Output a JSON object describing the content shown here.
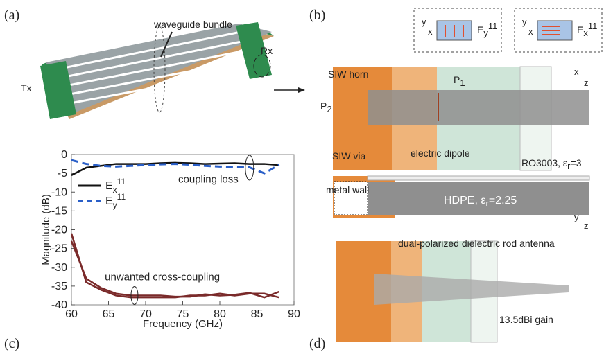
{
  "panels": {
    "a": {
      "label": "(a)",
      "bundle": "waveguide bundle",
      "rx": "Rx",
      "tx": "Tx"
    },
    "b": {
      "label": "(b)",
      "ey": [
        "E",
        "y",
        "11"
      ],
      "ex": [
        "E",
        "x",
        "11"
      ],
      "siw_horn": "SIW horn",
      "p1": [
        "P",
        "1"
      ],
      "p2": [
        "P",
        "2"
      ],
      "siw_via": "SIW via",
      "dipole": "electric dipole",
      "ro": [
        "RO3003, ε",
        "r",
        "=3"
      ],
      "metal_wall": "metal wall",
      "hdpe": [
        "HDPE, ε",
        "r",
        "=2.25"
      ],
      "ax_x": "x",
      "ax_y": "y",
      "ax_z": "z"
    },
    "c": {
      "label": "(c)"
    },
    "d": {
      "label": "(d)",
      "rod": "dual-polarized dielectric rod antenna",
      "gain": "13.5dBi gain",
      "ax_y": "y",
      "ax_z": "z"
    }
  },
  "chart_data": {
    "type": "line",
    "xlabel": "Frequency (GHz)",
    "ylabel": "Magnitude (dB)",
    "x": [
      60,
      62,
      64,
      66,
      68,
      70,
      72,
      74,
      76,
      78,
      80,
      82,
      84,
      86,
      88
    ],
    "series": [
      {
        "name": "E",
        "subscript": "x",
        "superscript": "11",
        "color": "#111111",
        "dash": false,
        "values": [
          -5.5,
          -3.5,
          -3,
          -2.5,
          -2.5,
          -2.5,
          -2.3,
          -2.2,
          -2.3,
          -2.5,
          -2.4,
          -2.3,
          -2.5,
          -2.5,
          -2.8
        ]
      },
      {
        "name": "E",
        "subscript": "y",
        "superscript": "11",
        "color": "#2a5fc8",
        "dash": true,
        "values": [
          -1.5,
          -2.5,
          -3,
          -3.2,
          -3,
          -2.8,
          -2.6,
          -2.5,
          -2.7,
          -3,
          -3.2,
          -3.3,
          -3.4,
          -5,
          -2.7
        ]
      },
      {
        "color": "#7a2a2a",
        "dash": false,
        "values": [
          -21,
          -34,
          -36,
          -37.5,
          -38,
          -38,
          -38,
          -38,
          -37.5,
          -37.5,
          -37,
          -37.5,
          -37,
          -37,
          -38
        ]
      },
      {
        "color": "#7a2a2a",
        "dash": false,
        "values": [
          -23,
          -33,
          -35.5,
          -37,
          -37.5,
          -37.5,
          -37.5,
          -37.8,
          -37.8,
          -37.2,
          -37.5,
          -37.3,
          -36.8,
          -38,
          -36.5
        ]
      }
    ],
    "xlim": [
      60,
      90
    ],
    "ylim": [
      -40,
      0
    ],
    "xticks": [
      60,
      65,
      70,
      75,
      80,
      85,
      90
    ],
    "yticks": [
      0,
      -5,
      -10,
      -15,
      -20,
      -25,
      -30,
      -35,
      -40
    ],
    "annotations": [
      "coupling loss",
      "unwanted cross-coupling"
    ]
  }
}
